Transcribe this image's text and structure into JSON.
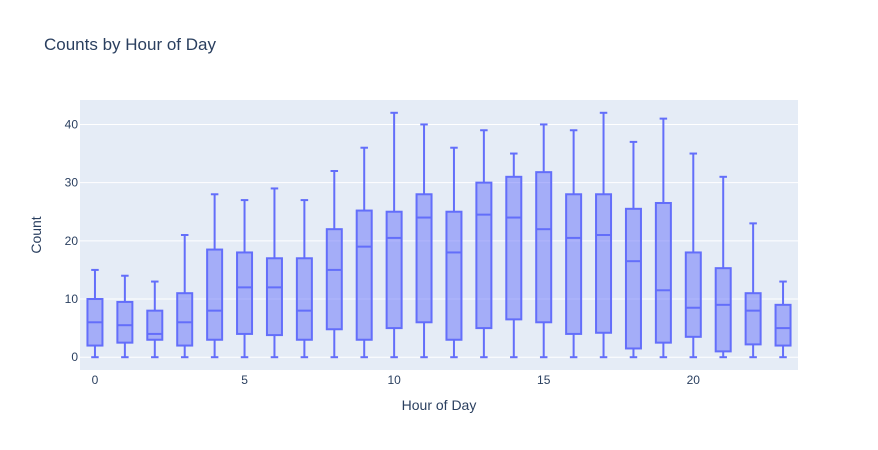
{
  "chart_data": {
    "type": "box",
    "title": "Counts by Hour of Day",
    "xlabel": "Hour of Day",
    "ylabel": "Count",
    "xlim": [
      -0.5,
      23.5
    ],
    "ylim": [
      -2.2,
      44.2
    ],
    "x_ticks": [
      0,
      5,
      10,
      15,
      20
    ],
    "y_ticks": [
      0,
      10,
      20,
      30,
      40
    ],
    "grid": true,
    "legend": "none",
    "colors": {
      "plot_bg": "#e5ecf6",
      "grid": "#ffffff",
      "box_line": "#636efa",
      "box_fill": "rgba(99,110,250,0.5)",
      "text": "#2a3f5f"
    },
    "boxes": [
      {
        "x": 0,
        "min": 0,
        "q1": 2,
        "median": 6,
        "q3": 10,
        "max": 15
      },
      {
        "x": 1,
        "min": 0,
        "q1": 2.5,
        "median": 5.5,
        "q3": 9.5,
        "max": 14
      },
      {
        "x": 2,
        "min": 0,
        "q1": 3,
        "median": 4,
        "q3": 8,
        "max": 13
      },
      {
        "x": 3,
        "min": 0,
        "q1": 2,
        "median": 6,
        "q3": 11,
        "max": 21
      },
      {
        "x": 4,
        "min": 0,
        "q1": 3,
        "median": 8,
        "q3": 18.5,
        "max": 28
      },
      {
        "x": 5,
        "min": 0,
        "q1": 4,
        "median": 12,
        "q3": 18,
        "max": 27
      },
      {
        "x": 6,
        "min": 0,
        "q1": 3.8,
        "median": 12,
        "q3": 17,
        "max": 29
      },
      {
        "x": 7,
        "min": 0,
        "q1": 3,
        "median": 8,
        "q3": 17,
        "max": 27
      },
      {
        "x": 8,
        "min": 0,
        "q1": 4.8,
        "median": 15,
        "q3": 22,
        "max": 32
      },
      {
        "x": 9,
        "min": 0,
        "q1": 3,
        "median": 19,
        "q3": 25.2,
        "max": 36
      },
      {
        "x": 10,
        "min": 0,
        "q1": 5,
        "median": 20.5,
        "q3": 25,
        "max": 42
      },
      {
        "x": 11,
        "min": 0,
        "q1": 6,
        "median": 24,
        "q3": 28,
        "max": 40
      },
      {
        "x": 12,
        "min": 0,
        "q1": 3,
        "median": 18,
        "q3": 25,
        "max": 36
      },
      {
        "x": 13,
        "min": 0,
        "q1": 5,
        "median": 24.5,
        "q3": 30,
        "max": 39
      },
      {
        "x": 14,
        "min": 0,
        "q1": 6.5,
        "median": 24,
        "q3": 31,
        "max": 35
      },
      {
        "x": 15,
        "min": 0,
        "q1": 6,
        "median": 22,
        "q3": 31.8,
        "max": 40
      },
      {
        "x": 16,
        "min": 0,
        "q1": 4,
        "median": 20.5,
        "q3": 28,
        "max": 39
      },
      {
        "x": 17,
        "min": 0,
        "q1": 4.2,
        "median": 21,
        "q3": 28,
        "max": 42
      },
      {
        "x": 18,
        "min": 0,
        "q1": 1.5,
        "median": 16.5,
        "q3": 25.5,
        "max": 37
      },
      {
        "x": 19,
        "min": 0,
        "q1": 2.5,
        "median": 11.5,
        "q3": 26.5,
        "max": 41
      },
      {
        "x": 20,
        "min": 0,
        "q1": 3.5,
        "median": 8.5,
        "q3": 18,
        "max": 35
      },
      {
        "x": 21,
        "min": 0,
        "q1": 1,
        "median": 9,
        "q3": 15.3,
        "max": 31
      },
      {
        "x": 22,
        "min": 0,
        "q1": 2.2,
        "median": 8,
        "q3": 11,
        "max": 23
      },
      {
        "x": 23,
        "min": 0,
        "q1": 2,
        "median": 5,
        "q3": 9,
        "max": 13
      }
    ]
  }
}
